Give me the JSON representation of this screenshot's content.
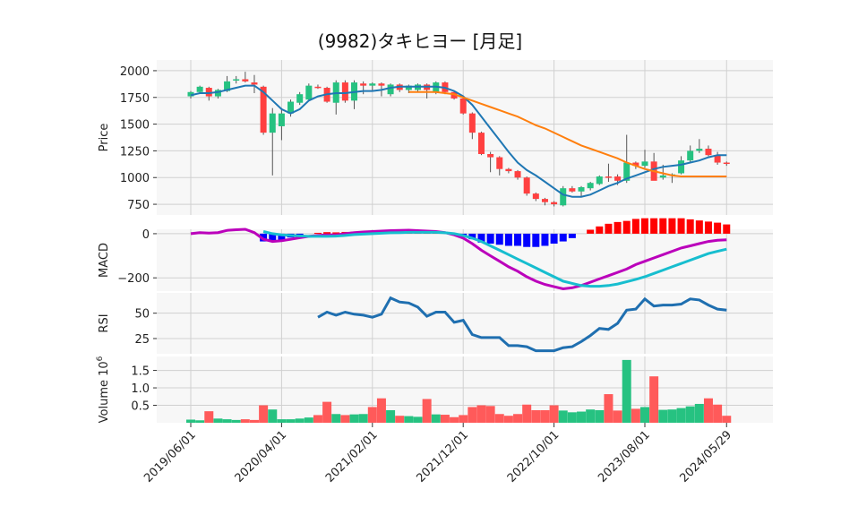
{
  "title": "(9982)タキヒヨー [月足]",
  "chart_data": [
    {
      "type": "candlestick",
      "panel": "price",
      "ylabel": "Price",
      "ylim": [
        650,
        2100
      ],
      "yticks": [
        "2000",
        "1750",
        "1500",
        "1250",
        "1000",
        "750"
      ],
      "grid": true,
      "xlabels": [
        "2019/06/01",
        "2020/04/01",
        "2021/02/01",
        "2021/12/01",
        "2022/10/01",
        "2023/08/01",
        "2024/05/29"
      ],
      "ohlc": [
        [
          1760,
          1810,
          1740,
          1800
        ],
        [
          1800,
          1860,
          1790,
          1850
        ],
        [
          1840,
          1850,
          1720,
          1760
        ],
        [
          1760,
          1830,
          1740,
          1820
        ],
        [
          1810,
          1950,
          1800,
          1900
        ],
        [
          1910,
          1950,
          1880,
          1920
        ],
        [
          1920,
          1990,
          1890,
          1900
        ],
        [
          1890,
          1960,
          1790,
          1870
        ],
        [
          1850,
          1860,
          1400,
          1420
        ],
        [
          1420,
          1650,
          1020,
          1600
        ],
        [
          1480,
          1650,
          1350,
          1600
        ],
        [
          1600,
          1730,
          1570,
          1710
        ],
        [
          1700,
          1800,
          1680,
          1780
        ],
        [
          1730,
          1880,
          1720,
          1860
        ],
        [
          1850,
          1870,
          1830,
          1840
        ],
        [
          1840,
          1850,
          1700,
          1710
        ],
        [
          1700,
          1910,
          1590,
          1890
        ],
        [
          1890,
          1910,
          1700,
          1720
        ],
        [
          1720,
          1910,
          1640,
          1890
        ],
        [
          1880,
          1900,
          1780,
          1860
        ],
        [
          1860,
          1890,
          1810,
          1880
        ],
        [
          1880,
          1890,
          1760,
          1860
        ],
        [
          1780,
          1880,
          1760,
          1870
        ],
        [
          1870,
          1880,
          1800,
          1820
        ],
        [
          1820,
          1870,
          1790,
          1860
        ],
        [
          1820,
          1880,
          1800,
          1870
        ],
        [
          1870,
          1880,
          1740,
          1820
        ],
        [
          1800,
          1900,
          1780,
          1890
        ],
        [
          1890,
          1900,
          1780,
          1800
        ],
        [
          1800,
          1810,
          1730,
          1740
        ],
        [
          1740,
          1750,
          1590,
          1600
        ],
        [
          1600,
          1610,
          1360,
          1420
        ],
        [
          1420,
          1430,
          1210,
          1220
        ],
        [
          1220,
          1240,
          1050,
          1190
        ],
        [
          1190,
          1200,
          1020,
          1080
        ],
        [
          1080,
          1090,
          1040,
          1060
        ],
        [
          1060,
          1070,
          980,
          1000
        ],
        [
          1000,
          1010,
          830,
          850
        ],
        [
          850,
          860,
          780,
          800
        ],
        [
          800,
          810,
          740,
          770
        ],
        [
          770,
          780,
          730,
          750
        ],
        [
          740,
          920,
          730,
          900
        ],
        [
          900,
          920,
          860,
          870
        ],
        [
          870,
          920,
          820,
          910
        ],
        [
          900,
          960,
          880,
          950
        ],
        [
          940,
          1020,
          930,
          1010
        ],
        [
          1010,
          1130,
          960,
          1000
        ],
        [
          1010,
          1030,
          930,
          970
        ],
        [
          970,
          1400,
          950,
          1140
        ],
        [
          1140,
          1150,
          1080,
          1110
        ],
        [
          1110,
          1260,
          1090,
          1150
        ],
        [
          1150,
          1230,
          980,
          970
        ],
        [
          1000,
          1120,
          980,
          1020
        ],
        [
          1020,
          1040,
          950,
          1030
        ],
        [
          1040,
          1200,
          1030,
          1160
        ],
        [
          1160,
          1300,
          1140,
          1250
        ],
        [
          1250,
          1360,
          1230,
          1270
        ],
        [
          1270,
          1300,
          1200,
          1210
        ],
        [
          1210,
          1240,
          1120,
          1140
        ],
        [
          1140,
          1150,
          1110,
          1130
        ]
      ],
      "series": [
        {
          "role": "ma_short",
          "color": "#1f77b4",
          "values": [
            1770,
            1790,
            1790,
            1800,
            1820,
            1840,
            1860,
            1860,
            1800,
            1720,
            1640,
            1600,
            1640,
            1720,
            1760,
            1780,
            1790,
            1790,
            1800,
            1810,
            1810,
            1820,
            1840,
            1850,
            1850,
            1850,
            1850,
            1850,
            1840,
            1810,
            1760,
            1680,
            1570,
            1460,
            1350,
            1240,
            1140,
            1070,
            1020,
            960,
            900,
            840,
            820,
            820,
            840,
            880,
            920,
            950,
            990,
            1020,
            1050,
            1080,
            1100,
            1110,
            1120,
            1140,
            1160,
            1190,
            1210,
            1210
          ]
        },
        {
          "role": "ma_long",
          "color": "#ff7f0e",
          "values": [
            null,
            null,
            null,
            null,
            null,
            null,
            null,
            null,
            null,
            null,
            null,
            null,
            null,
            null,
            null,
            null,
            null,
            null,
            null,
            null,
            null,
            null,
            null,
            null,
            1800,
            1800,
            1800,
            1800,
            1790,
            1780,
            1750,
            1720,
            1690,
            1660,
            1630,
            1600,
            1570,
            1530,
            1490,
            1460,
            1420,
            1380,
            1340,
            1300,
            1270,
            1240,
            1210,
            1180,
            1140,
            1110,
            1080,
            1060,
            1040,
            1020,
            1010,
            1010,
            1010,
            1010,
            1010,
            1010
          ]
        }
      ]
    },
    {
      "type": "macd",
      "panel": "macd",
      "ylabel": "MACD",
      "ylim": [
        -260,
        20
      ],
      "yticks": [
        "0",
        "−200"
      ],
      "macd": [
        0,
        5,
        3,
        5,
        15,
        18,
        20,
        5,
        -25,
        -35,
        -32,
        -25,
        -18,
        -12,
        -8,
        -5,
        -5,
        0,
        5,
        8,
        10,
        12,
        14,
        15,
        16,
        14,
        12,
        10,
        5,
        -5,
        -20,
        -45,
        -75,
        -100,
        -125,
        -150,
        -170,
        -195,
        -215,
        -230,
        -240,
        -250,
        -245,
        -235,
        -220,
        -205,
        -190,
        -175,
        -160,
        -140,
        -125,
        -110,
        -95,
        -80,
        -65,
        -55,
        -45,
        -35,
        -30,
        -28
      ],
      "signal": [
        null,
        null,
        null,
        null,
        null,
        null,
        null,
        null,
        10,
        0,
        -5,
        -8,
        -10,
        -12,
        -12,
        -12,
        -11,
        -8,
        -4,
        -2,
        0,
        2,
        4,
        5,
        6,
        6,
        6,
        6,
        4,
        0,
        -8,
        -20,
        -35,
        -55,
        -75,
        -95,
        -115,
        -135,
        -155,
        -175,
        -195,
        -215,
        -225,
        -235,
        -238,
        -238,
        -235,
        -228,
        -218,
        -207,
        -195,
        -180,
        -165,
        -150,
        -135,
        -120,
        -105,
        -90,
        -80,
        -70
      ],
      "histogram": [
        null,
        null,
        null,
        null,
        null,
        null,
        null,
        null,
        -35,
        -35,
        -27,
        -17,
        -8,
        0,
        4,
        7,
        6,
        8,
        9,
        10,
        10,
        10,
        10,
        10,
        10,
        8,
        6,
        4,
        1,
        -5,
        -12,
        -25,
        -40,
        -45,
        -50,
        -55,
        -55,
        -60,
        -60,
        -55,
        -45,
        -35,
        -20,
        0,
        18,
        33,
        45,
        53,
        58,
        67,
        70,
        70,
        70,
        70,
        70,
        65,
        60,
        55,
        50,
        42
      ],
      "macd_color": "#bb00bb",
      "signal_color": "#17becf",
      "hist_pos_color": "#ff0000",
      "hist_neg_color": "#0000ff"
    },
    {
      "type": "line",
      "panel": "rsi",
      "ylabel": "RSI",
      "ylim": [
        10,
        70
      ],
      "yticks": [
        "50",
        "25"
      ],
      "color": "#1f6fb0",
      "values": [
        null,
        null,
        null,
        null,
        null,
        null,
        null,
        null,
        null,
        null,
        null,
        null,
        null,
        null,
        46,
        51,
        48,
        51,
        49,
        48,
        46,
        49,
        65,
        61,
        60,
        56,
        47,
        51,
        51,
        41,
        43,
        29,
        26,
        26,
        26,
        18,
        18,
        17,
        13,
        13,
        13,
        16,
        17,
        22,
        28,
        35,
        34,
        40,
        53,
        54,
        64,
        57,
        58,
        58,
        59,
        64,
        63,
        58,
        54,
        53
      ]
    },
    {
      "type": "bar",
      "panel": "volume",
      "ylabel": "Volume",
      "ylabel_exponent": "6",
      "ylim": [
        0,
        1.9
      ],
      "yticks": [
        "1.5",
        "1.0",
        "0.5"
      ],
      "up_color": "#26c281",
      "down_color": "#ff5a5a",
      "values": [
        0.09,
        0.07,
        0.33,
        0.12,
        0.1,
        0.08,
        0.1,
        0.08,
        0.5,
        0.38,
        0.1,
        0.1,
        0.12,
        0.15,
        0.22,
        0.6,
        0.25,
        0.22,
        0.24,
        0.25,
        0.45,
        0.7,
        0.36,
        0.2,
        0.19,
        0.17,
        0.68,
        0.24,
        0.23,
        0.16,
        0.22,
        0.45,
        0.5,
        0.48,
        0.25,
        0.2,
        0.25,
        0.52,
        0.36,
        0.36,
        0.5,
        0.35,
        0.3,
        0.32,
        0.38,
        0.36,
        0.82,
        0.35,
        1.8,
        0.4,
        0.45,
        1.33,
        0.37,
        0.38,
        0.42,
        0.47,
        0.54,
        0.7,
        0.52,
        0.2
      ],
      "up": [
        1,
        1,
        0,
        1,
        1,
        1,
        0,
        0,
        0,
        1,
        1,
        1,
        1,
        1,
        0,
        0,
        1,
        0,
        1,
        1,
        0,
        0,
        1,
        0,
        1,
        1,
        0,
        1,
        0,
        0,
        0,
        0,
        0,
        0,
        0,
        0,
        0,
        0,
        0,
        0,
        0,
        1,
        1,
        1,
        1,
        1,
        0,
        0,
        1,
        0,
        1,
        0,
        1,
        1,
        1,
        1,
        1,
        0,
        0,
        0
      ]
    }
  ]
}
